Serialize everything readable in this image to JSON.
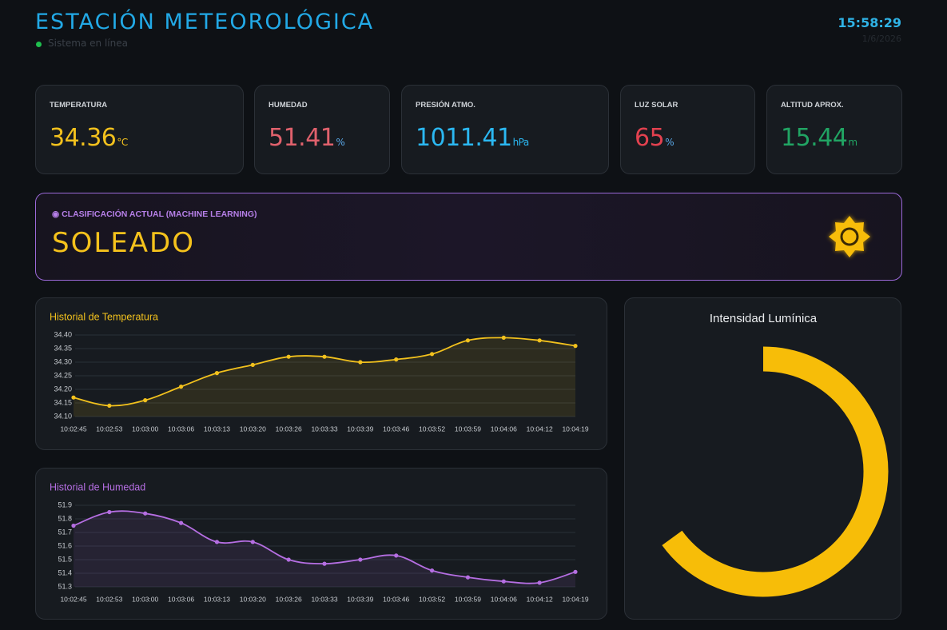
{
  "header": {
    "title": "ESTACIÓN METEOROLÓGICA",
    "status": "Sistema en línea",
    "time": "15:58:29",
    "date": "1/6/2026"
  },
  "cards": [
    {
      "label": "TEMPERATURA",
      "value": 34.36,
      "unit": "°C"
    },
    {
      "label": "HUMEDAD",
      "value": 51.41,
      "unit": "%"
    },
    {
      "label": "PRESIÓN ATMO.",
      "value": 1011.41,
      "unit": "hPa"
    },
    {
      "label": "LUZ SOLAR",
      "value": 65,
      "unit": "%"
    },
    {
      "label": "ALTITUD APROX.",
      "value": 15.44,
      "unit": "m"
    }
  ],
  "classification": {
    "label": "CLASIFICACIÓN ACTUAL (MACHINE LEARNING)",
    "value": "SOLEADO"
  },
  "chart_data": [
    {
      "type": "line",
      "title": "Historial de Temperatura",
      "color": "#f2c11d",
      "grid": true,
      "categories": [
        "10:02:45",
        "10:02:53",
        "10:03:00",
        "10:03:06",
        "10:03:13",
        "10:03:20",
        "10:03:26",
        "10:03:33",
        "10:03:39",
        "10:03:46",
        "10:03:52",
        "10:03:59",
        "10:04:06",
        "10:04:12",
        "10:04:19"
      ],
      "values": [
        34.17,
        34.14,
        34.16,
        34.21,
        34.26,
        34.29,
        34.32,
        34.32,
        34.3,
        34.31,
        34.33,
        34.38,
        34.39,
        34.38,
        34.36
      ],
      "ylim": [
        34.1,
        34.4
      ],
      "yticks": [
        {
          "value": 34.1,
          "label": "34.10"
        },
        34.15,
        {
          "value": 34.2,
          "label": "34.20"
        },
        34.25,
        {
          "value": 34.3,
          "label": "34.30"
        },
        34.35,
        {
          "value": 34.4,
          "label": "34.40"
        }
      ]
    },
    {
      "type": "line",
      "title": "Historial de Humedad",
      "color": "#b56ee2",
      "grid": true,
      "categories": [
        "10:02:45",
        "10:02:53",
        "10:03:00",
        "10:03:06",
        "10:03:13",
        "10:03:20",
        "10:03:26",
        "10:03:33",
        "10:03:39",
        "10:03:46",
        "10:03:52",
        "10:03:59",
        "10:04:06",
        "10:04:12",
        "10:04:19"
      ],
      "values": [
        51.75,
        51.85,
        51.84,
        51.77,
        51.63,
        51.63,
        51.5,
        51.47,
        51.5,
        51.53,
        51.42,
        51.37,
        51.34,
        51.33,
        51.41
      ],
      "ylim": [
        51.3,
        51.9
      ],
      "yticks": [
        51.3,
        51.4,
        51.5,
        51.6,
        51.7,
        51.8,
        51.9
      ]
    },
    {
      "type": "doughnut",
      "title": "Intensidad Lumínica",
      "color": "#f7bd08",
      "values": [
        65
      ],
      "lim": [
        0,
        100
      ]
    }
  ]
}
